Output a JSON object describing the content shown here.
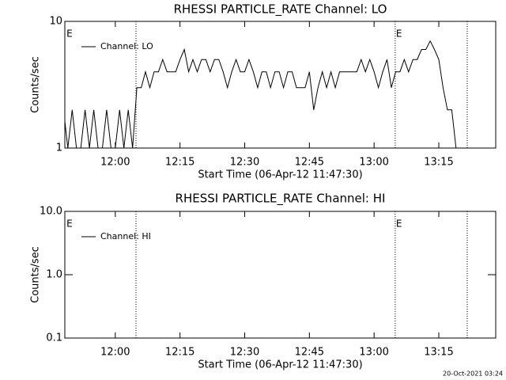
{
  "chart_data": [
    {
      "type": "line",
      "title": "RHESSI PARTICLE_RATE Channel: LO",
      "x_label": "Start Time (06-Apr-12 11:47:30)",
      "y_label": "Counts/sec",
      "log_y": true,
      "legend": "upper left",
      "xlim": [
        708.3,
        808.2
      ],
      "xticks": [
        {
          "value": 720,
          "label": "12:00"
        },
        {
          "value": 735,
          "label": "12:15"
        },
        {
          "value": 750,
          "label": "12:30"
        },
        {
          "value": 765,
          "label": "12:45"
        },
        {
          "value": 780,
          "label": "13:00"
        },
        {
          "value": 795,
          "label": "13:15"
        }
      ],
      "ylim": [
        1,
        10
      ],
      "yticks": [
        1,
        10
      ],
      "markers": [
        724.8,
        784.9,
        801.6
      ],
      "flags": [
        {
          "x": 708.5,
          "label": "E"
        },
        {
          "x": 784.9,
          "label": "E"
        }
      ],
      "x": [
        708,
        709,
        710,
        711,
        712,
        713,
        714,
        715,
        716,
        717,
        718,
        719,
        720,
        721,
        722,
        723,
        724,
        725,
        726,
        727,
        728,
        729,
        730,
        731,
        732,
        733,
        734,
        735,
        736,
        737,
        738,
        739,
        740,
        741,
        742,
        743,
        744,
        745,
        746,
        747,
        748,
        749,
        750,
        751,
        752,
        753,
        754,
        755,
        756,
        757,
        758,
        759,
        760,
        761,
        762,
        763,
        764,
        765,
        766,
        767,
        768,
        769,
        770,
        771,
        772,
        773,
        774,
        775,
        776,
        777,
        778,
        779,
        780,
        781,
        782,
        783,
        784,
        785,
        786,
        787,
        788,
        789,
        790,
        791,
        792,
        793,
        794,
        795,
        796,
        797,
        798,
        799
      ],
      "series": [
        {
          "name": "Channel: LO",
          "color": "#000000",
          "values": [
            2,
            1,
            2,
            1,
            1,
            2,
            1,
            2,
            1,
            1,
            2,
            1,
            1,
            2,
            1,
            2,
            1,
            3,
            3,
            4,
            3,
            4,
            4,
            5,
            4,
            4,
            4,
            5,
            6,
            4,
            5,
            4,
            5,
            5,
            4,
            5,
            5,
            4,
            3,
            4,
            5,
            4,
            4,
            5,
            4,
            3,
            4,
            4,
            3,
            4,
            4,
            3,
            4,
            4,
            3,
            3,
            3,
            4,
            2,
            3,
            4,
            3,
            4,
            3,
            4,
            4,
            4,
            4,
            4,
            5,
            4,
            5,
            4,
            3,
            4,
            5,
            3,
            4,
            4,
            5,
            4,
            5,
            5,
            6,
            6,
            7,
            6,
            5,
            3,
            2,
            2,
            1
          ]
        }
      ]
    },
    {
      "type": "line",
      "title": "RHESSI PARTICLE_RATE Channel: HI",
      "x_label": "Start Time (06-Apr-12 11:47:30)",
      "y_label": "Counts/sec",
      "log_y": true,
      "legend": "upper left",
      "xlim": [
        708.3,
        808.2
      ],
      "xticks": [
        {
          "value": 720,
          "label": "12:00"
        },
        {
          "value": 735,
          "label": "12:15"
        },
        {
          "value": 750,
          "label": "12:30"
        },
        {
          "value": 765,
          "label": "12:45"
        },
        {
          "value": 780,
          "label": "13:00"
        },
        {
          "value": 795,
          "label": "13:15"
        }
      ],
      "ylim": [
        0.1,
        10
      ],
      "yticks": [
        0.1,
        {
          "value": 1,
          "label": "1.0"
        },
        {
          "value": 10,
          "label": "10.0"
        }
      ],
      "markers": [
        724.8,
        784.9,
        801.6
      ],
      "flags": [
        {
          "x": 708.5,
          "label": "E"
        },
        {
          "x": 784.9,
          "label": "E"
        }
      ],
      "x": [],
      "series": [
        {
          "name": "Channel: HI",
          "color": "#000000",
          "values": []
        }
      ]
    }
  ],
  "footer": "20-Oct-2021 03:24"
}
